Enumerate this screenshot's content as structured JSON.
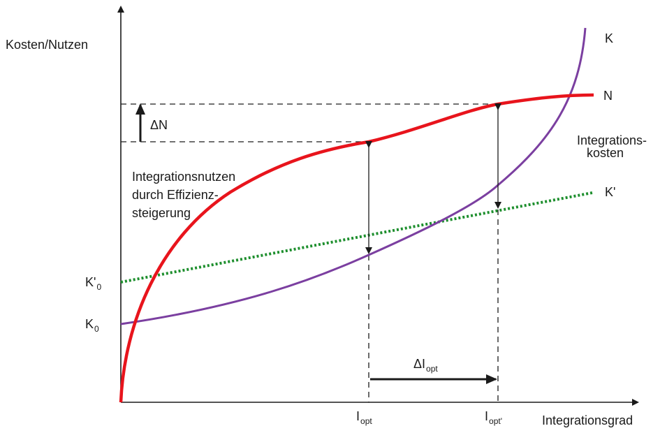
{
  "axes": {
    "y_label": "Kosten/Nutzen",
    "x_label": "Integrationsgrad"
  },
  "curves": {
    "K": {
      "label": "K",
      "color": "#7b3fa0"
    },
    "N": {
      "label": "N",
      "color": "#e8141c"
    },
    "K_prime": {
      "label": "K'",
      "color": "#1e8f2e"
    }
  },
  "annotations": {
    "delta_n": "ΔN",
    "integrationsnutzen": [
      "Integrationsnutzen",
      "durch Effizienz-",
      "steigerung"
    ],
    "integrationskosten": [
      "Integrations-",
      "kosten"
    ],
    "k0_prime": {
      "main": "K'",
      "sub": "0"
    },
    "k0": {
      "main": "K",
      "sub": "0"
    },
    "delta_iopt": {
      "main": "ΔI",
      "sub": "opt"
    },
    "iopt": {
      "main": "I",
      "sub": "opt"
    },
    "iopt_prime": {
      "main": "I",
      "sub": "opt'"
    }
  },
  "colors": {
    "axis": "#1a1a1a",
    "dashed": "#1a1a1a"
  }
}
